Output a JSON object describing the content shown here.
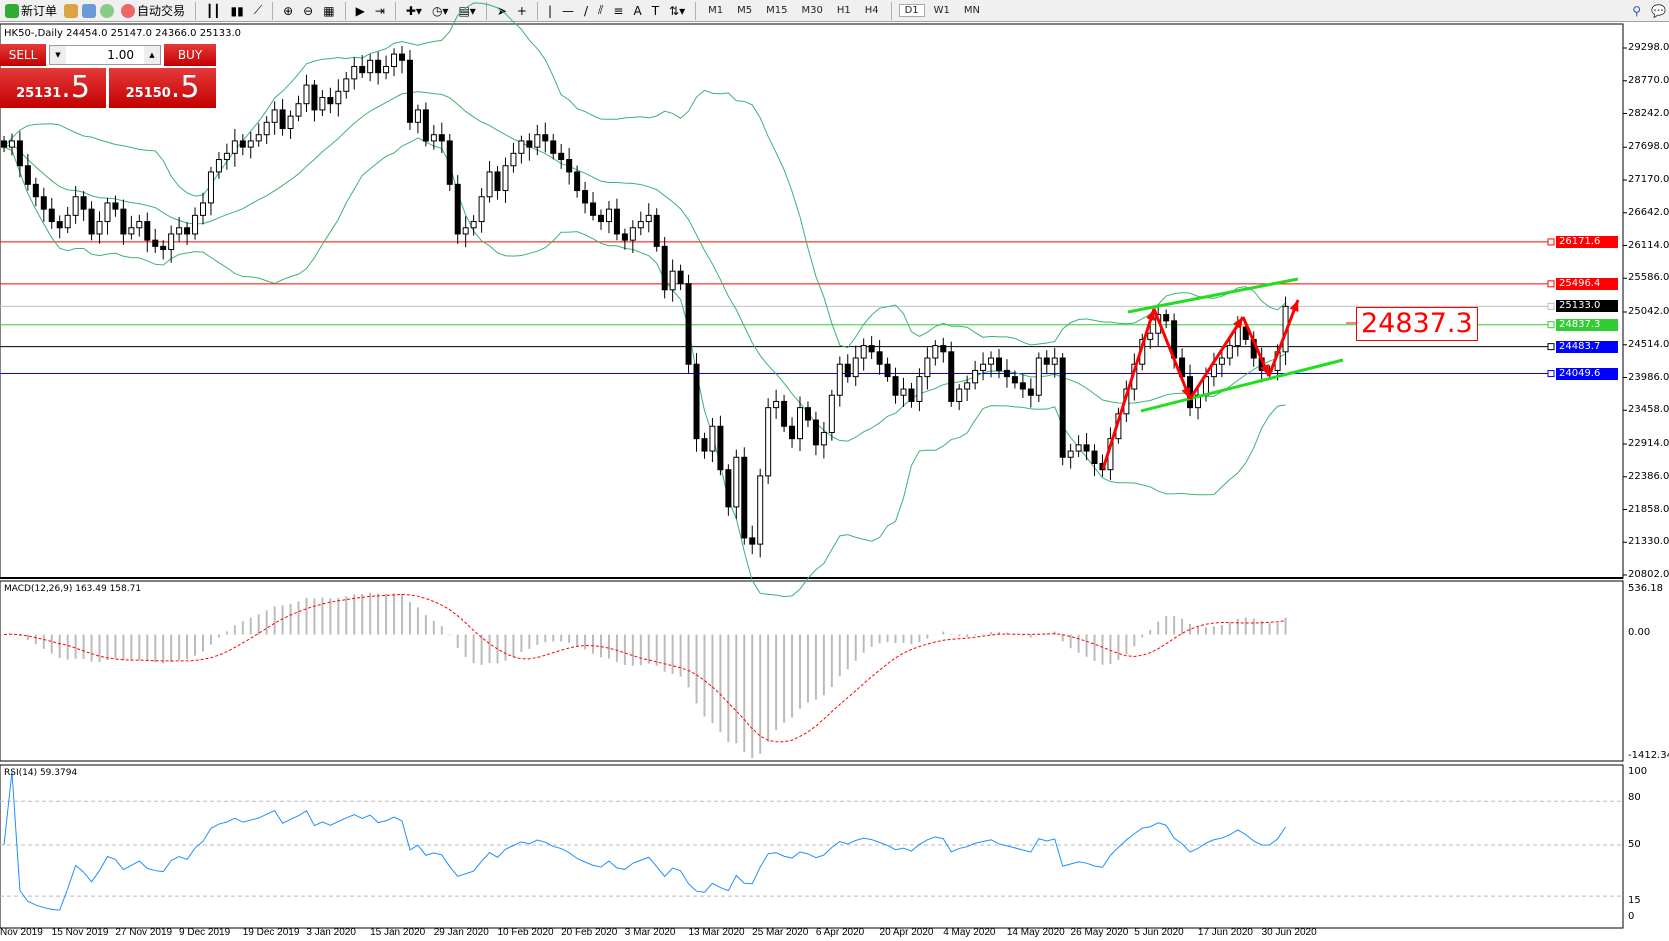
{
  "toolbar": {
    "new_order": "新订单",
    "auto_trading": "自动交易",
    "timeframes": [
      "M1",
      "M5",
      "M15",
      "M30",
      "H1",
      "H4",
      "D1",
      "W1",
      "MN"
    ]
  },
  "header": {
    "symbol": "HK50-,Daily",
    "ohlc": "24454.0 25147.0 24366.0 25133.0"
  },
  "trade": {
    "sell_label": "SELL",
    "buy_label": "BUY",
    "lot": "1.00",
    "sell_main": "25131",
    "sell_frac": ".5",
    "buy_main": "25150",
    "buy_frac": ".5"
  },
  "annotation": {
    "text": "24837.3",
    "color": "#ff0000"
  },
  "price_axis": [
    "29298.0",
    "28770.0",
    "28242.0",
    "27698.0",
    "27170.0",
    "26642.0",
    "26114.0",
    "25586.0",
    "25042.0",
    "24514.0",
    "23986.0",
    "23458.0",
    "22914.0",
    "22386.0",
    "21858.0",
    "21330.0",
    "20802.0"
  ],
  "levels": [
    {
      "value": "26171.6",
      "color": "#ff0000",
      "tag": "#ff0000"
    },
    {
      "value": "25496.4",
      "color": "#ff0000",
      "tag": "#ff0000"
    },
    {
      "value": "25133.0",
      "color": "#c0c0c0",
      "tag": "#000000"
    },
    {
      "value": "24837.3",
      "color": "#32cd32",
      "tag": "#32cd32"
    },
    {
      "value": "24483.7",
      "color": "#000000",
      "tag": "#0000ff"
    },
    {
      "value": "24049.6",
      "color": "#0000ff",
      "tag": "#0000ff"
    }
  ],
  "macd": {
    "label": "MACD(12,26,9) 163.49 158.71",
    "max": "536.18",
    "zero": "0.00",
    "min": "-1412.34"
  },
  "rsi": {
    "label": "RSI(14) 59.3794",
    "levels": [
      "100",
      "80",
      "50",
      "15",
      "0"
    ]
  },
  "x_axis": [
    "Nov 2019",
    "15 Nov 2019",
    "27 Nov 2019",
    "9 Dec 2019",
    "19 Dec 2019",
    "3 Jan 2020",
    "15 Jan 2020",
    "29 Jan 2020",
    "10 Feb 2020",
    "20 Feb 2020",
    "3 Mar 2020",
    "13 Mar 2020",
    "25 Mar 2020",
    "6 Apr 2020",
    "20 Apr 2020",
    "4 May 2020",
    "14 May 2020",
    "26 May 2020",
    "5 Jun 2020",
    "17 Jun 2020",
    "30 Jun 2020"
  ],
  "chart_data": {
    "type": "candlestick",
    "symbol": "HK50-",
    "timeframe": "Daily",
    "ylim": [
      20802,
      29298
    ],
    "close_approx": [
      27700,
      27800,
      27400,
      27100,
      26900,
      26700,
      26500,
      26400,
      26600,
      26900,
      26700,
      26300,
      26500,
      26800,
      26700,
      26300,
      26400,
      26500,
      26200,
      26100,
      26050,
      26300,
      26400,
      26300,
      26600,
      26800,
      27300,
      27500,
      27600,
      27800,
      27700,
      27800,
      27900,
      28100,
      28300,
      28000,
      28200,
      28400,
      28700,
      28300,
      28500,
      28400,
      28600,
      28800,
      29000,
      28900,
      29100,
      28900,
      29000,
      29200,
      29100,
      28100,
      28300,
      27800,
      27900,
      27800,
      27100,
      26300,
      26400,
      26500,
      26900,
      27300,
      27000,
      27400,
      27600,
      27800,
      27700,
      27900,
      27800,
      27600,
      27500,
      27300,
      27000,
      26800,
      26600,
      26500,
      26700,
      26300,
      26200,
      26400,
      26500,
      26600,
      26100,
      25400,
      25700,
      25500,
      24200,
      23000,
      22800,
      23200,
      22500,
      21900,
      22700,
      21400,
      21300,
      22400,
      23500,
      23600,
      23200,
      23000,
      23500,
      23300,
      22900,
      23100,
      23700,
      24200,
      24000,
      24300,
      24500,
      24400,
      24200,
      24000,
      23700,
      23800,
      23600,
      24000,
      24300,
      24500,
      24400,
      23600,
      23800,
      23900,
      24100,
      24200,
      24300,
      24100,
      24000,
      23900,
      23800,
      23700,
      24300,
      24200,
      24300,
      22700,
      22800,
      22900,
      22800,
      22600,
      22500,
      23000,
      23400,
      23800,
      24200,
      24600,
      24700,
      25000,
      24900,
      24300,
      24000,
      23500,
      23700,
      24000,
      24200,
      24300,
      24500,
      24800,
      24600,
      24300,
      24100,
      24100,
      24400,
      25133
    ]
  }
}
